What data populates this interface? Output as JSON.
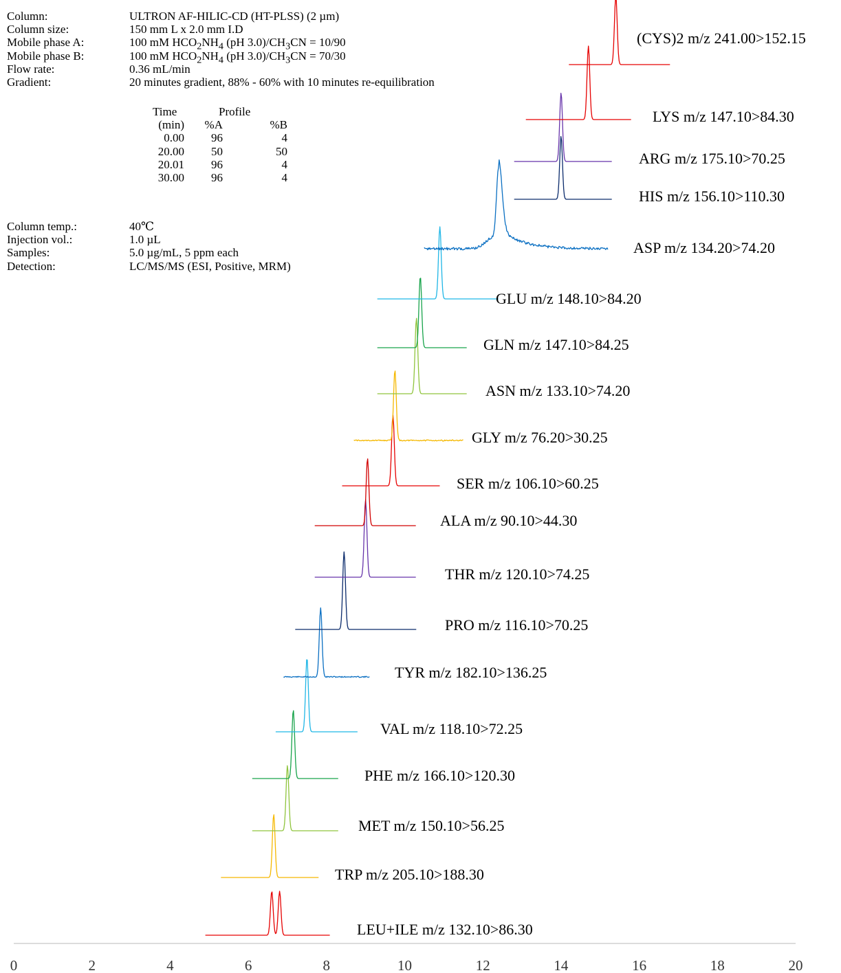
{
  "conditions": [
    {
      "label": "Column:",
      "value": "ULTRON AF-HILIC-CD (HT-PLSS) (2 µm)"
    },
    {
      "label": "Column size:",
      "value": "150 mm L x 2.0 mm I.D"
    },
    {
      "label": "Mobile phase A:",
      "value_parts": [
        "100 mM HCO",
        "2",
        "NH",
        "4",
        " (pH 3.0)/CH",
        "3",
        "CN = 10/90"
      ]
    },
    {
      "label": "Mobile phase B:",
      "value_parts": [
        "100 mM HCO",
        "2",
        "NH",
        "4",
        " (pH 3.0)/CH",
        "3",
        "CN = 70/30"
      ]
    },
    {
      "label": "Flow rate:",
      "value": "0.36 mL/min"
    },
    {
      "label": "Gradient:",
      "value": "20 minutes gradient, 88% - 60% with 10 minutes re-equilibration"
    }
  ],
  "gradient_table": {
    "header1": [
      "Time",
      "Profile"
    ],
    "header2": [
      "(min)",
      "%A",
      "%B"
    ],
    "rows": [
      [
        "0.00",
        "96",
        "4"
      ],
      [
        "20.00",
        "50",
        "50"
      ],
      [
        "20.01",
        "96",
        "4"
      ],
      [
        "30.00",
        "96",
        "4"
      ]
    ]
  },
  "conditions_later": [
    {
      "label": "Column temp.:",
      "value": "40℃"
    },
    {
      "label": "Injection vol.:",
      "value": "1.0 µL"
    },
    {
      "label": "Samples:",
      "value": "5.0 µg/mL, 5 ppm each"
    },
    {
      "label": "Detection:",
      "value": "LC/MS/MS (ESI, Positive, MRM)"
    }
  ],
  "chart_data": {
    "type": "line",
    "xlim": [
      0,
      20
    ],
    "x_ticks": [
      "0",
      "2",
      "4",
      "6",
      "8",
      "10",
      "12",
      "14",
      "16",
      "18",
      "20"
    ],
    "grid": false,
    "series": [
      {
        "name": "LEU+ILE m/z 132.10>86.30",
        "color": "#e60000",
        "x_range": [
          4.9,
          8.1
        ],
        "peaks": [
          {
            "rt": 6.6,
            "height": 1.0
          },
          {
            "rt": 6.8,
            "height": 1.0
          }
        ],
        "noise": 0
      },
      {
        "name": "TRP m/z 205.10>188.30",
        "color": "#f5b800",
        "x_range": [
          5.3,
          7.8
        ],
        "peaks": [
          {
            "rt": 6.65,
            "height": 1.0
          }
        ],
        "noise": 0
      },
      {
        "name": "MET m/z 150.10>56.25",
        "color": "#8fc43c",
        "x_range": [
          6.1,
          8.3
        ],
        "peaks": [
          {
            "rt": 7.0,
            "height": 1.0
          }
        ],
        "noise": 0
      },
      {
        "name": "PHE m/z 166.10>120.30",
        "color": "#17a34a",
        "x_range": [
          6.1,
          8.3
        ],
        "peaks": [
          {
            "rt": 7.15,
            "height": 1.0
          }
        ],
        "noise": 0
      },
      {
        "name": "VAL m/z 118.10>72.25",
        "color": "#1fb6e6",
        "x_range": [
          6.7,
          8.8
        ],
        "peaks": [
          {
            "rt": 7.5,
            "height": 1.0
          }
        ],
        "noise": 0
      },
      {
        "name": "TYR m/z 182.10>136.25",
        "color": "#0a6fc2",
        "x_range": [
          6.9,
          9.1
        ],
        "peaks": [
          {
            "rt": 7.85,
            "height": 1.0
          }
        ],
        "noise": 0.5
      },
      {
        "name": "PRO m/z 116.10>70.25",
        "color": "#0a2a6b",
        "x_range": [
          7.2,
          10.3
        ],
        "peaks": [
          {
            "rt": 8.45,
            "height": 1.0
          }
        ],
        "noise": 0
      },
      {
        "name": "THR m/z 120.10>74.25",
        "color": "#6633aa",
        "x_range": [
          7.7,
          10.3
        ],
        "peaks": [
          {
            "rt": 9.0,
            "height": 1.0
          }
        ],
        "noise": 0
      },
      {
        "name": "ALA m/z 90.10>44.30",
        "color": "#d10000",
        "x_range": [
          7.7,
          10.3
        ],
        "peaks": [
          {
            "rt": 9.05,
            "height": 1.0
          }
        ],
        "noise": 0
      },
      {
        "name": "SER m/z 106.10>60.25",
        "color": "#e60000",
        "x_range": [
          8.4,
          10.9
        ],
        "peaks": [
          {
            "rt": 9.7,
            "height": 1.0
          }
        ],
        "noise": 0
      },
      {
        "name": "GLY m/z 76.20>30.25",
        "color": "#f5b800",
        "x_range": [
          8.7,
          11.5
        ],
        "peaks": [
          {
            "rt": 9.75,
            "height": 1.0
          }
        ],
        "noise": 0.5
      },
      {
        "name": "ASN m/z 133.10>74.20",
        "color": "#8fc43c",
        "x_range": [
          9.3,
          11.6
        ],
        "peaks": [
          {
            "rt": 10.3,
            "height": 1.0
          }
        ],
        "noise": 0
      },
      {
        "name": "GLN m/z 147.10>84.25",
        "color": "#17a34a",
        "x_range": [
          9.3,
          11.6
        ],
        "peaks": [
          {
            "rt": 10.4,
            "height": 1.0
          }
        ],
        "noise": 0
      },
      {
        "name": "GLU m/z 148.10>84.20",
        "color": "#1fb6e6",
        "x_range": [
          9.3,
          12.4
        ],
        "peaks": [
          {
            "rt": 10.9,
            "height": 1.0
          }
        ],
        "noise": 0
      },
      {
        "name": "ASP m/z 134.20>74.20",
        "color": "#0a6fc2",
        "x_range": [
          10.5,
          15.2
        ],
        "peaks": [
          {
            "rt": 12.4,
            "height": 1.0
          }
        ],
        "noise": 1.2,
        "tail": 1
      },
      {
        "name": "HIS m/z 156.10>110.30",
        "color": "#0a2a6b",
        "x_range": [
          12.8,
          15.3
        ],
        "peaks": [
          {
            "rt": 14.0,
            "height": 1.0
          }
        ],
        "noise": 0
      },
      {
        "name": "ARG m/z 175.10>70.25",
        "color": "#6633aa",
        "x_range": [
          12.8,
          15.3
        ],
        "peaks": [
          {
            "rt": 14.0,
            "height": 1.0
          }
        ],
        "noise": 0
      },
      {
        "name": "LYS m/z 147.10>84.30",
        "color": "#e60000",
        "x_range": [
          13.1,
          15.8
        ],
        "peaks": [
          {
            "rt": 14.7,
            "height": 1.0
          }
        ],
        "noise": 0
      },
      {
        "name": "(CYS)2 m/z 241.00>152.15",
        "color": "#e60000",
        "x_range": [
          14.2,
          16.8
        ],
        "peaks": [
          {
            "rt": 15.4,
            "height": 1.0
          }
        ],
        "noise": 0
      }
    ]
  }
}
